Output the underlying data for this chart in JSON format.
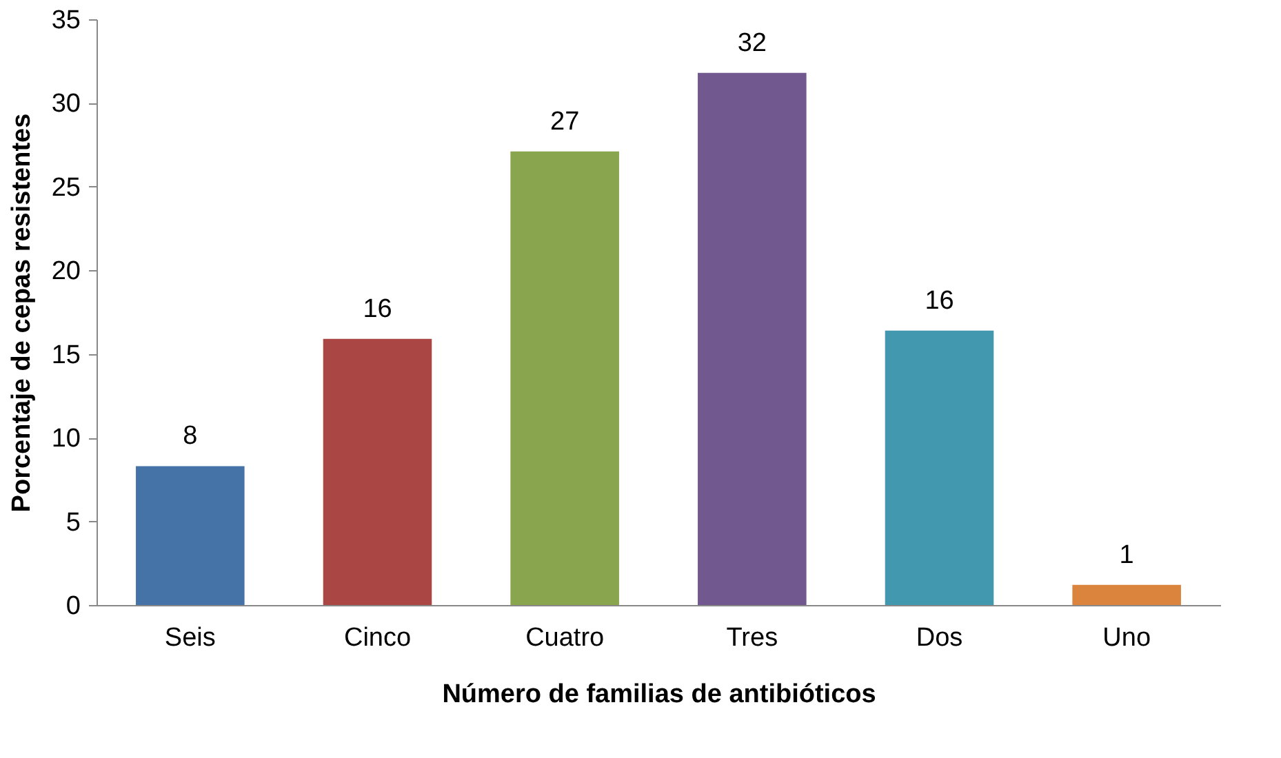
{
  "chart_data": {
    "type": "bar",
    "xlabel": "Número de familias de antibióticos",
    "ylabel": "Porcentaje de cepas resistentes",
    "categories": [
      "Seis",
      "Cinco",
      "Cuatro",
      "Tres",
      "Dos",
      "Uno"
    ],
    "values": [
      8.3,
      15.9,
      27.1,
      31.8,
      16.4,
      1.2
    ],
    "value_labels": [
      "8",
      "16",
      "27",
      "32",
      "16",
      "1"
    ],
    "colors": [
      "#4572a7",
      "#aa4643",
      "#89a54e",
      "#71588f",
      "#4198af",
      "#db843d"
    ],
    "ylim": [
      0,
      35
    ],
    "yticks": [
      0,
      5,
      10,
      15,
      20,
      25,
      30,
      35
    ],
    "grid": false
  }
}
